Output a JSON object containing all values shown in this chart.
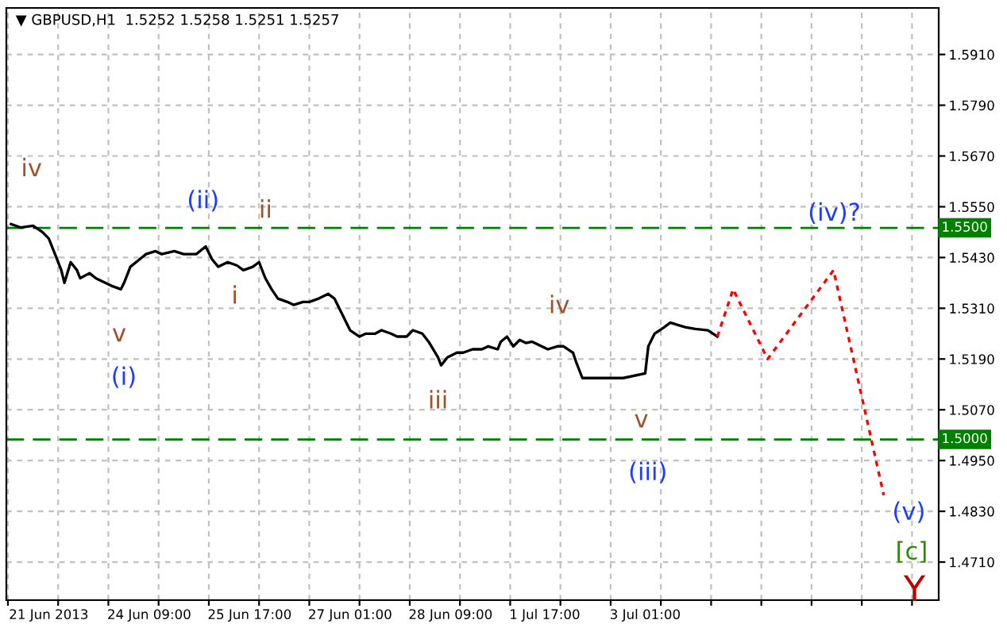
{
  "chart_data": {
    "type": "line",
    "title": "▼ GBPUSD,H1  1.5252 1.5258 1.5251 1.5257",
    "categories": [
      null,
      null,
      null,
      null,
      null,
      null,
      null,
      null,
      null,
      null,
      null,
      null,
      null,
      "21 Jun 2013",
      null,
      null,
      null,
      null,
      null,
      null,
      null,
      null,
      null,
      null,
      null,
      null,
      null,
      null,
      null,
      null,
      null,
      null,
      null,
      null,
      null,
      null,
      null,
      null,
      null,
      null,
      null,
      null,
      null,
      null,
      null,
      "24 Jun 09:00",
      null,
      null,
      null,
      null,
      null,
      null,
      null,
      null,
      null,
      null,
      null,
      null,
      null,
      null,
      null,
      null,
      null,
      null,
      null,
      null,
      null,
      null,
      null,
      null,
      null,
      null,
      null,
      null,
      null,
      null,
      null,
      "25 Jun 17:00",
      null,
      null,
      null,
      null,
      null,
      null,
      null,
      null,
      null,
      null,
      null,
      null,
      null,
      null,
      null,
      null,
      null,
      null,
      null,
      null,
      null,
      null,
      null,
      null,
      null,
      null,
      null,
      null,
      null,
      null,
      null,
      "27 Jun 01:00",
      null,
      null,
      null,
      null,
      null,
      null,
      null,
      null,
      null,
      null,
      null,
      null,
      null,
      null,
      null,
      null,
      null,
      null,
      null,
      null,
      null,
      null,
      null,
      null,
      null,
      null,
      null,
      null,
      null,
      null,
      null,
      "28 Jun 09:00",
      null,
      null,
      null,
      null,
      null,
      null,
      null,
      null,
      null,
      null,
      null,
      null,
      null,
      null,
      null,
      null,
      null,
      null,
      null,
      null,
      null,
      null,
      null,
      null,
      null,
      null,
      null,
      null,
      null,
      "1 Jul 17:00",
      null,
      null,
      null,
      null,
      null,
      null,
      null,
      null,
      null,
      null,
      null,
      null,
      null,
      null,
      null,
      null,
      null,
      null,
      null,
      null,
      null,
      null,
      null,
      null,
      null,
      null,
      null,
      null,
      null,
      null,
      null,
      "3 Jul 01:00",
      null,
      null,
      null,
      null,
      null,
      null,
      null,
      null,
      null,
      null,
      null,
      null,
      null,
      null,
      null,
      null,
      null,
      null,
      null,
      null,
      null,
      null,
      null,
      null,
      null,
      null,
      null,
      null,
      null,
      null,
      null,
      null,
      null,
      null,
      null,
      null,
      null,
      null,
      null,
      null,
      null,
      null,
      null,
      null,
      null,
      null,
      null,
      null,
      null,
      null,
      null,
      null,
      null,
      null,
      null,
      null,
      null,
      null,
      null,
      null,
      null,
      null,
      null,
      null,
      null,
      null,
      null,
      null,
      null,
      null,
      null,
      null,
      null,
      null,
      null,
      null,
      null,
      null,
      null,
      null,
      null,
      null,
      null,
      null,
      null,
      null,
      null,
      null,
      null,
      null,
      null,
      null,
      null
    ],
    "series": [
      {
        "color": "#000000",
        "line_style": "solid",
        "values": [
          null,
          1.5509,
          null,
          null,
          1.5501,
          null,
          null,
          null,
          1.5505,
          null,
          null,
          1.549,
          null,
          1.5475,
          null,
          1.5438,
          null,
          1.54,
          1.537,
          null,
          1.5419,
          null,
          1.54,
          1.5381,
          null,
          null,
          1.5393,
          null,
          1.5381,
          null,
          null,
          1.537,
          null,
          1.5363,
          null,
          null,
          1.5355,
          1.537,
          null,
          1.5408,
          null,
          null,
          1.5426,
          null,
          1.5438,
          null,
          null,
          1.5445,
          null,
          1.5438,
          null,
          null,
          null,
          1.5445,
          null,
          null,
          1.5438,
          null,
          null,
          null,
          1.5438,
          null,
          null,
          1.5456,
          null,
          1.5426,
          null,
          1.5408,
          null,
          null,
          1.5419,
          null,
          null,
          1.5411,
          null,
          1.54,
          null,
          null,
          1.5408,
          null,
          1.5419,
          null,
          1.5381,
          null,
          1.5355,
          null,
          1.5333,
          null,
          null,
          1.5325,
          null,
          1.5318,
          null,
          null,
          1.5325,
          null,
          1.5325,
          null,
          null,
          1.5333,
          null,
          null,
          1.5344,
          null,
          1.5333,
          null,
          null,
          1.5288,
          null,
          1.5258,
          null,
          null,
          1.5243,
          null,
          1.525,
          null,
          null,
          1.525,
          null,
          1.5258,
          null,
          null,
          1.525,
          null,
          1.5243,
          null,
          null,
          1.5243,
          null,
          1.5258,
          null,
          null,
          1.525,
          null,
          1.5231,
          null,
          null,
          1.5194,
          1.5175,
          null,
          1.5194,
          null,
          null,
          1.5205,
          null,
          1.5205,
          null,
          null,
          1.5213,
          null,
          null,
          1.5213,
          null,
          1.522,
          null,
          null,
          1.5213,
          1.5231,
          null,
          1.5243,
          null,
          1.522,
          null,
          1.5235,
          null,
          1.5228,
          null,
          1.5231,
          null,
          null,
          1.522,
          null,
          1.5213,
          null,
          null,
          1.522,
          null,
          1.522,
          null,
          null,
          1.5205,
          1.5183,
          null,
          1.5145,
          null,
          null,
          1.5145,
          null,
          1.5145,
          null,
          null,
          1.5145,
          null,
          null,
          1.5145,
          null,
          1.5145,
          null,
          null,
          null,
          null,
          null,
          null,
          1.5156,
          1.522,
          null,
          1.525,
          null,
          null,
          1.5265,
          null,
          1.5276,
          null,
          null,
          1.5269,
          null,
          1.5265,
          null,
          null,
          1.5261,
          null,
          null,
          null,
          1.5258,
          null,
          null,
          1.5243,
          null,
          null,
          null,
          null,
          null,
          null,
          null,
          null,
          null,
          null,
          null,
          null,
          null,
          null,
          null,
          null,
          null,
          null,
          null,
          null,
          null,
          null,
          null,
          null,
          null,
          null,
          null,
          null,
          null,
          null,
          null,
          null,
          null,
          null,
          null,
          null,
          null,
          null,
          null,
          null,
          null,
          null,
          null,
          null,
          null,
          null,
          null,
          null,
          null,
          null,
          null,
          null,
          null,
          null,
          null,
          null,
          null,
          null,
          null,
          null,
          null,
          null,
          null,
          null,
          null,
          null,
          null,
          null,
          null,
          null
        ]
      },
      {
        "color": "#ff0000",
        "line_style": "dotted",
        "values": [
          null,
          null,
          null,
          null,
          null,
          null,
          null,
          null,
          null,
          null,
          null,
          null,
          null,
          null,
          null,
          null,
          null,
          null,
          null,
          null,
          null,
          null,
          null,
          null,
          null,
          null,
          null,
          null,
          null,
          null,
          null,
          null,
          null,
          null,
          null,
          null,
          null,
          null,
          null,
          null,
          null,
          null,
          null,
          null,
          null,
          null,
          null,
          null,
          null,
          null,
          null,
          null,
          null,
          null,
          null,
          null,
          null,
          null,
          null,
          null,
          null,
          null,
          null,
          null,
          null,
          null,
          null,
          null,
          null,
          null,
          null,
          null,
          null,
          null,
          null,
          null,
          null,
          null,
          null,
          null,
          null,
          null,
          null,
          null,
          null,
          null,
          null,
          null,
          null,
          null,
          null,
          null,
          null,
          null,
          null,
          null,
          null,
          null,
          null,
          null,
          null,
          null,
          null,
          null,
          null,
          null,
          null,
          null,
          null,
          null,
          null,
          null,
          null,
          null,
          null,
          null,
          null,
          null,
          null,
          null,
          null,
          null,
          null,
          null,
          null,
          null,
          null,
          null,
          null,
          null,
          null,
          null,
          null,
          null,
          null,
          null,
          null,
          null,
          null,
          null,
          null,
          null,
          null,
          null,
          null,
          null,
          null,
          null,
          null,
          null,
          null,
          null,
          null,
          null,
          null,
          null,
          null,
          null,
          null,
          null,
          null,
          null,
          null,
          null,
          null,
          null,
          null,
          null,
          null,
          null,
          null,
          null,
          null,
          null,
          null,
          null,
          null,
          null,
          null,
          null,
          null,
          null,
          null,
          null,
          null,
          null,
          null,
          null,
          null,
          null,
          null,
          null,
          null,
          null,
          null,
          null,
          null,
          null,
          null,
          null,
          null,
          null,
          null,
          null,
          null,
          null,
          null,
          null,
          null,
          null,
          null,
          null,
          null,
          null,
          null,
          null,
          null,
          null,
          null,
          null,
          null,
          null,
          null,
          null,
          null,
          null,
          1.5243,
          null,
          null,
          null,
          null,
          1.5355,
          null,
          null,
          null,
          null,
          null,
          null,
          null,
          null,
          null,
          null,
          1.519,
          null,
          null,
          null,
          null,
          null,
          null,
          null,
          null,
          null,
          null,
          null,
          null,
          null,
          null,
          null,
          null,
          null,
          null,
          null,
          null,
          1.54,
          null,
          null,
          null,
          null,
          null,
          null,
          null,
          null,
          null,
          null,
          null,
          null,
          null,
          null,
          null,
          1.4868,
          null,
          null,
          null,
          null,
          null,
          null,
          null,
          null,
          null,
          null,
          null,
          null,
          null,
          null,
          null,
          null,
          null
        ]
      }
    ],
    "ylim": [
      1.462,
      1.602
    ],
    "yticks": [
      {
        "value": 1.471,
        "label": "1.4710"
      },
      {
        "value": 1.483,
        "label": "1.4830"
      },
      {
        "value": 1.495,
        "label": "1.4950"
      },
      {
        "value": 1.507,
        "label": "1.5070"
      },
      {
        "value": 1.519,
        "label": "1.5190"
      },
      {
        "value": 1.531,
        "label": "1.5310"
      },
      {
        "value": 1.543,
        "label": "1.5430"
      },
      {
        "value": 1.555,
        "label": "1.5550"
      },
      {
        "value": 1.567,
        "label": "1.5670"
      },
      {
        "value": 1.579,
        "label": "1.5790"
      },
      {
        "value": 1.591,
        "label": "1.5910"
      }
    ],
    "grid": true,
    "ref_lines": [
      {
        "axis": "y",
        "value": 1.55,
        "label": "1.5500",
        "color": "#008000",
        "line_style": "dashed"
      },
      {
        "axis": "y",
        "value": 1.5,
        "label": "1.5000",
        "color": "#008000",
        "line_style": "dashed"
      }
    ],
    "annotations": [
      "iv",
      "v",
      "(i)",
      "(ii)",
      "ii",
      "i",
      "iii",
      "iv",
      "v",
      "(iii)",
      "(iv)?",
      "(v)",
      "[c]",
      "Y"
    ]
  }
}
